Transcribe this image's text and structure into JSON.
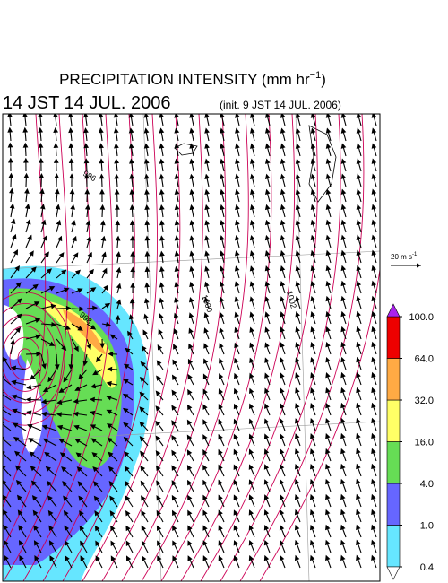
{
  "header": {
    "title": "PRECIPITATION INTENSITY (mm hr",
    "title_exponent": "−1",
    "title_close": ")",
    "valid_time": "14 JST 14 JUL. 2006",
    "init_time": "(init. 9 JST 14 JUL. 2006)"
  },
  "wind_scale": {
    "label": "20 m s",
    "exponent": "-1"
  },
  "contour_labels": [
    "996",
    "998",
    "1000",
    "1002"
  ],
  "colorbar": {
    "levels": [
      {
        "value": 0.4,
        "label": "0.4"
      },
      {
        "value": 1,
        "label": "1.0"
      },
      {
        "value": 4,
        "label": "4.0"
      },
      {
        "value": 16,
        "label": "16.0"
      },
      {
        "value": 32,
        "label": "32.0"
      },
      {
        "value": 64,
        "label": "64.0"
      },
      {
        "value": 100,
        "label": "100.0"
      }
    ],
    "colors": [
      "#66e6ff",
      "#6666ff",
      "#66dd55",
      "#ffff66",
      "#ffaa44",
      "#ee0000"
    ],
    "over_color": "#aa22ee",
    "under_color": "#ffffff"
  }
}
